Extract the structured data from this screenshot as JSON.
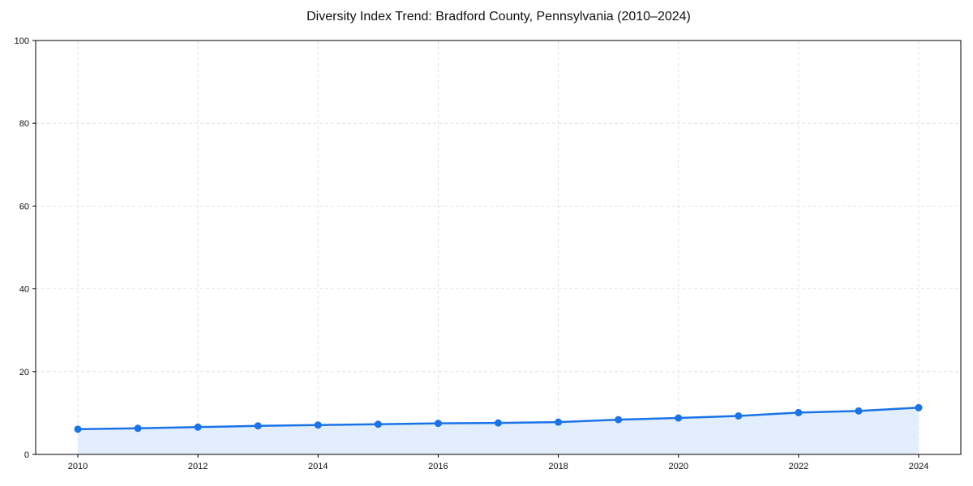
{
  "chart_data": {
    "type": "line",
    "title": "Diversity Index Trend: Bradford County, Pennsylvania (2010–2024)",
    "xlabel": "",
    "ylabel": "",
    "x": [
      2010,
      2011,
      2012,
      2013,
      2014,
      2015,
      2016,
      2017,
      2018,
      2019,
      2020,
      2021,
      2022,
      2023,
      2024
    ],
    "series": [
      {
        "name": "Diversity Index",
        "values": [
          6.1,
          6.3,
          6.6,
          6.9,
          7.1,
          7.3,
          7.5,
          7.6,
          7.8,
          8.4,
          8.8,
          9.3,
          10.1,
          10.5,
          11.3
        ],
        "color": "#1a73e8",
        "fill_color": "#e3eefc"
      }
    ],
    "xticks": [
      2010,
      2012,
      2014,
      2016,
      2018,
      2020,
      2022,
      2024
    ],
    "yticks": [
      0,
      20,
      40,
      60,
      80,
      100
    ],
    "xlim": [
      2009.3,
      2024.7
    ],
    "ylim": [
      0,
      100
    ],
    "grid": true,
    "legend": null
  }
}
